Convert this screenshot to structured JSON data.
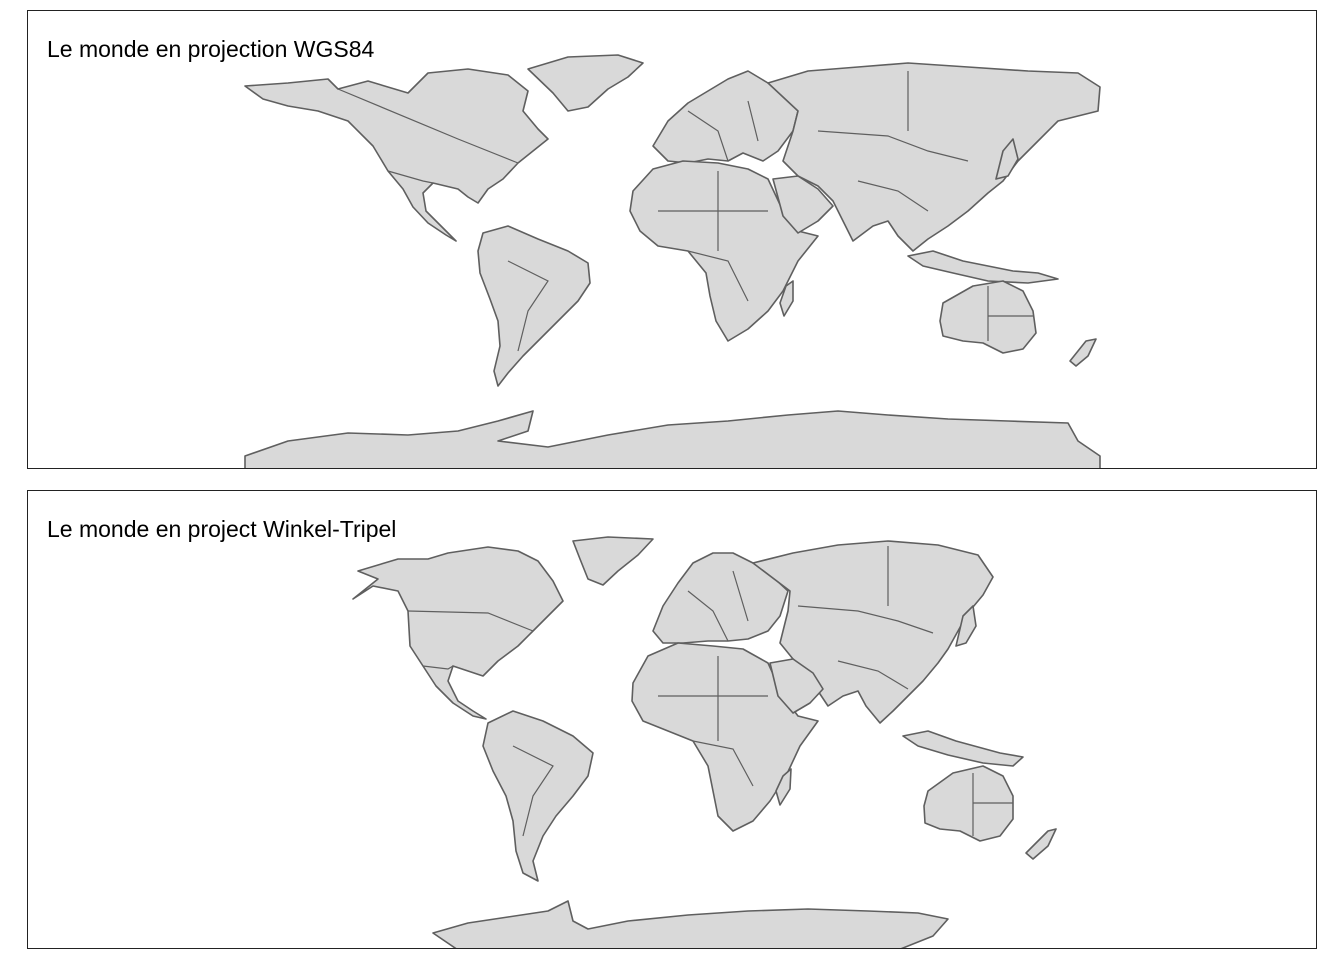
{
  "colors": {
    "land_fill": "#d9d9d9",
    "border_stroke": "#5f5f5f",
    "panel_border": "#222222",
    "background": "#ffffff"
  },
  "panels": [
    {
      "title": "Le monde en projection WGS84",
      "projection": "WGS84",
      "content": "world-map-countries"
    },
    {
      "title": "Le monde en project Winkel-Tripel",
      "projection": "Winkel-Tripel",
      "content": "world-map-countries"
    }
  ]
}
